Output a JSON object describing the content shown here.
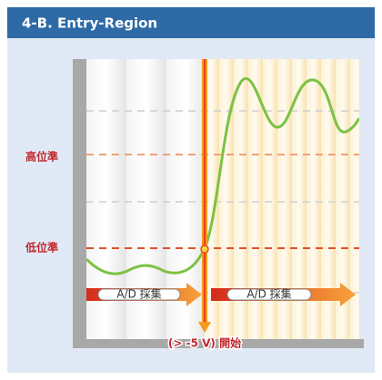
{
  "header": {
    "title": "4-B. Entry-Region"
  },
  "levels": {
    "high": "高位準",
    "low": "低位準"
  },
  "arrows": [
    "A/D 採集",
    "A/D 採集"
  ],
  "trigger": "(> -5 V) 開始"
}
